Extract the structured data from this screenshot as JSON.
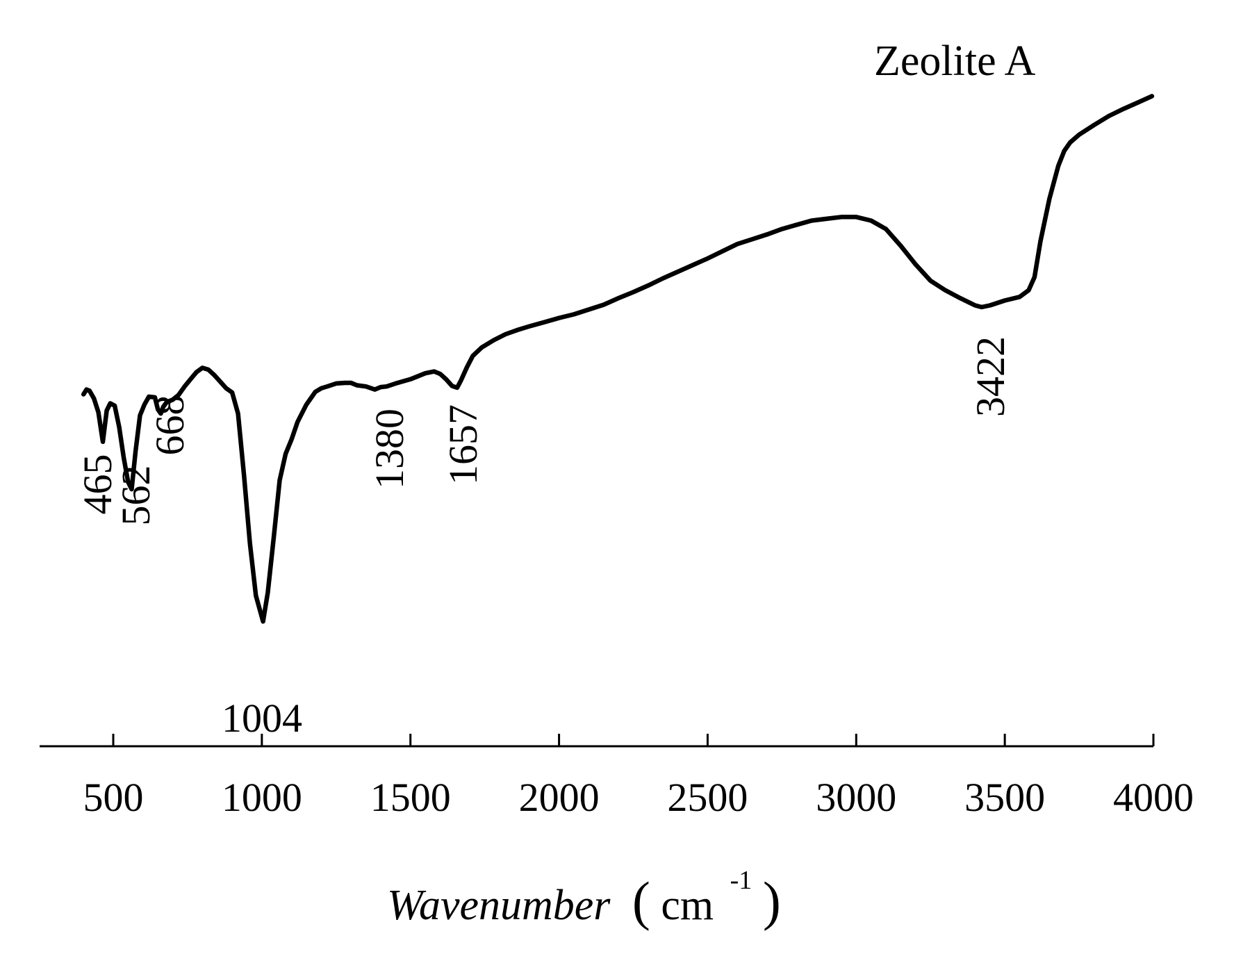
{
  "chart_data": {
    "type": "line",
    "title": "",
    "legend_text": "Zeolite A",
    "xlabel": {
      "italic": "Wavenumber",
      "open_paren": "(",
      "unit": "cm",
      "sup": "-1",
      "close_paren": ")"
    },
    "ylabel": "",
    "xlim": [
      250,
      4000
    ],
    "ylim": [
      0,
      100
    ],
    "xticks": [
      500,
      1000,
      1500,
      2000,
      2500,
      3000,
      3500,
      4000
    ],
    "xtick_labels": [
      "500",
      "1000",
      "1500",
      "2000",
      "2500",
      "3000",
      "3500",
      "4000"
    ],
    "y_axis_shown": false,
    "grid": false,
    "line_color": "#000000",
    "series": [
      {
        "x": [
          400,
          410,
          420,
          435,
          450,
          465,
          478,
          490,
          505,
          520,
          535,
          550,
          562,
          575,
          590,
          605,
          620,
          640,
          650,
          660,
          668,
          680,
          700,
          720,
          740,
          760,
          780,
          800,
          820,
          840,
          860,
          880,
          900,
          920,
          940,
          960,
          980,
          1004,
          1020,
          1040,
          1060,
          1080,
          1100,
          1120,
          1150,
          1180,
          1200,
          1220,
          1250,
          1280,
          1300,
          1320,
          1350,
          1380,
          1400,
          1420,
          1450,
          1500,
          1550,
          1580,
          1600,
          1620,
          1640,
          1657,
          1670,
          1690,
          1710,
          1740,
          1780,
          1820,
          1860,
          1900,
          1950,
          2000,
          2050,
          2100,
          2150,
          2200,
          2250,
          2300,
          2350,
          2400,
          2450,
          2500,
          2550,
          2600,
          2650,
          2700,
          2750,
          2800,
          2850,
          2900,
          2950,
          3000,
          3050,
          3100,
          3150,
          3200,
          3250,
          3300,
          3350,
          3400,
          3422,
          3450,
          3500,
          3550,
          3580,
          3600,
          3620,
          3650,
          3680,
          3700,
          3720,
          3750,
          3800,
          3850,
          3900,
          3950,
          3995
        ],
        "y": [
          48.5,
          49.3,
          49.1,
          47.8,
          45.5,
          40.6,
          45.8,
          47.0,
          46.6,
          43.0,
          38.0,
          33.9,
          32.7,
          39.0,
          45.0,
          46.8,
          48.1,
          48.0,
          46.0,
          45.3,
          46.4,
          47.2,
          47.6,
          48.4,
          49.8,
          51.0,
          52.2,
          52.9,
          52.6,
          51.7,
          50.6,
          49.5,
          48.8,
          45.3,
          35.0,
          23.7,
          15.0,
          10.7,
          15.5,
          24.7,
          34.2,
          38.6,
          41.0,
          43.9,
          46.8,
          48.9,
          49.5,
          49.8,
          50.3,
          50.4,
          50.4,
          50.0,
          49.8,
          49.3,
          49.7,
          49.8,
          50.3,
          51.0,
          52.0,
          52.3,
          51.9,
          51.0,
          49.9,
          49.6,
          50.8,
          53.0,
          54.9,
          56.3,
          57.5,
          58.5,
          59.2,
          59.8,
          60.5,
          61.2,
          61.8,
          62.6,
          63.4,
          64.5,
          65.5,
          66.6,
          67.8,
          68.9,
          70.0,
          71.1,
          72.3,
          73.5,
          74.3,
          75.1,
          76.0,
          76.7,
          77.4,
          77.7,
          78.0,
          78.0,
          77.4,
          76.0,
          73.2,
          70.1,
          67.4,
          65.8,
          64.5,
          63.3,
          63.0,
          63.3,
          64.1,
          64.7,
          65.8,
          68.0,
          74.0,
          81.0,
          86.5,
          89.0,
          90.4,
          91.7,
          93.3,
          94.8,
          96.0,
          97.1,
          98.1
        ]
      }
    ],
    "annotations": [
      "465",
      "562",
      "668",
      "1004",
      "1380",
      "1657",
      "3422"
    ]
  }
}
